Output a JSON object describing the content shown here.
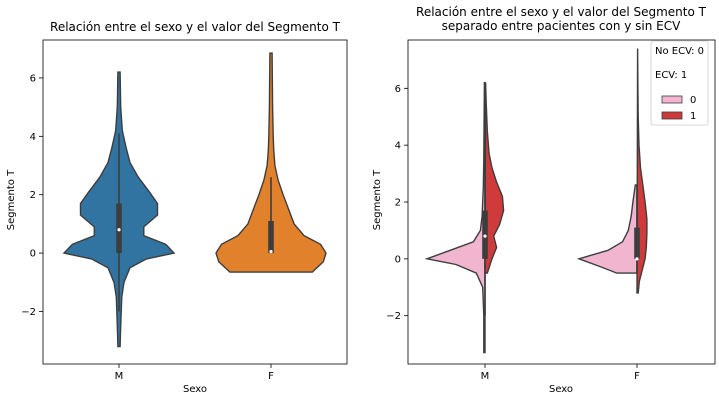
{
  "chart_data": [
    {
      "type": "violin",
      "title": "Relación entre el sexo y el valor del Segmento T",
      "xlabel": "Sexo",
      "ylabel": "Segmento T",
      "categories": [
        "M",
        "F"
      ],
      "ylim": [
        -3.8,
        7.3
      ],
      "yticks": [
        -2,
        0,
        2,
        4,
        6
      ],
      "colors": [
        "#3274a1",
        "#e1812c"
      ],
      "grid": false,
      "violins": [
        {
          "category": "M",
          "min": -3.2,
          "max": 6.2,
          "q1": 0.0,
          "median": 0.8,
          "q3": 1.7,
          "whisker_low": -2.0,
          "whisker_high": 4.1,
          "density": [
            [
              -3.2,
              0.02
            ],
            [
              -2.5,
              0.03
            ],
            [
              -1.5,
              0.05
            ],
            [
              -1.0,
              0.09
            ],
            [
              -0.5,
              0.2
            ],
            [
              -0.2,
              0.5
            ],
            [
              0.0,
              1.0
            ],
            [
              0.3,
              0.85
            ],
            [
              0.6,
              0.45
            ],
            [
              0.9,
              0.45
            ],
            [
              1.3,
              0.7
            ],
            [
              1.7,
              0.7
            ],
            [
              2.1,
              0.55
            ],
            [
              2.6,
              0.35
            ],
            [
              3.1,
              0.2
            ],
            [
              3.6,
              0.13
            ],
            [
              4.2,
              0.06
            ],
            [
              5.0,
              0.03
            ],
            [
              6.2,
              0.02
            ]
          ]
        },
        {
          "category": "F",
          "min": -0.65,
          "max": 6.85,
          "q1": 0.0,
          "median": 0.05,
          "q3": 1.1,
          "whisker_low": 0.0,
          "whisker_high": 2.6,
          "density": [
            [
              -0.65,
              0.75
            ],
            [
              -0.3,
              0.95
            ],
            [
              0.0,
              1.0
            ],
            [
              0.3,
              0.9
            ],
            [
              0.6,
              0.6
            ],
            [
              1.0,
              0.42
            ],
            [
              1.5,
              0.32
            ],
            [
              2.0,
              0.22
            ],
            [
              2.5,
              0.13
            ],
            [
              3.0,
              0.07
            ],
            [
              3.5,
              0.05
            ],
            [
              4.0,
              0.04
            ],
            [
              5.0,
              0.03
            ],
            [
              6.85,
              0.02
            ]
          ]
        }
      ]
    },
    {
      "type": "violin",
      "split": true,
      "title": "Relación entre el sexo y el valor del Segmento T\nseparado entre pacientes con y sin ECV",
      "xlabel": "Sexo",
      "ylabel": "Segmento T",
      "categories": [
        "M",
        "F"
      ],
      "ylim": [
        -3.7,
        7.7
      ],
      "yticks": [
        -2,
        0,
        2,
        4,
        6
      ],
      "grid": false,
      "legend": {
        "placement": "top-right",
        "notes": [
          "No ECV: 0",
          "ECV: 1"
        ],
        "entries": [
          {
            "label": "0",
            "color": "#f1b5cf"
          },
          {
            "label": "1",
            "color": "#cf3a3a"
          }
        ]
      },
      "violins": [
        {
          "category": "M",
          "hue": "0",
          "side": "left",
          "min": -3.3,
          "max": 6.2,
          "density": [
            [
              -3.3,
              0.02
            ],
            [
              -2.0,
              0.02
            ],
            [
              -1.0,
              0.04
            ],
            [
              -0.5,
              0.15
            ],
            [
              -0.2,
              0.5
            ],
            [
              0.0,
              1.0
            ],
            [
              0.3,
              0.6
            ],
            [
              0.6,
              0.2
            ],
            [
              1.0,
              0.08
            ],
            [
              1.5,
              0.05
            ],
            [
              2.0,
              0.04
            ],
            [
              2.5,
              0.03
            ],
            [
              3.5,
              0.02
            ],
            [
              6.2,
              0.01
            ]
          ]
        },
        {
          "category": "M",
          "hue": "1",
          "side": "right",
          "min": -0.5,
          "max": 6.2,
          "density": [
            [
              -0.5,
              0.04
            ],
            [
              0.0,
              0.12
            ],
            [
              0.4,
              0.2
            ],
            [
              0.8,
              0.15
            ],
            [
              1.2,
              0.25
            ],
            [
              1.7,
              0.32
            ],
            [
              2.2,
              0.3
            ],
            [
              2.7,
              0.2
            ],
            [
              3.2,
              0.12
            ],
            [
              3.7,
              0.07
            ],
            [
              4.5,
              0.04
            ],
            [
              5.5,
              0.02
            ],
            [
              6.2,
              0.01
            ]
          ]
        },
        {
          "category": "F",
          "hue": "0",
          "side": "left",
          "min": -0.5,
          "max": 2.6,
          "density": [
            [
              -0.5,
              0.35
            ],
            [
              -0.3,
              0.6
            ],
            [
              0.0,
              1.0
            ],
            [
              0.3,
              0.5
            ],
            [
              0.6,
              0.25
            ],
            [
              1.0,
              0.15
            ],
            [
              1.5,
              0.1
            ],
            [
              2.0,
              0.07
            ],
            [
              2.6,
              0.03
            ]
          ]
        },
        {
          "category": "F",
          "hue": "1",
          "side": "right",
          "min": -1.2,
          "max": 7.4,
          "density": [
            [
              -1.2,
              0.02
            ],
            [
              -0.8,
              0.04
            ],
            [
              -0.4,
              0.09
            ],
            [
              0.0,
              0.14
            ],
            [
              0.4,
              0.16
            ],
            [
              0.9,
              0.17
            ],
            [
              1.4,
              0.17
            ],
            [
              2.0,
              0.14
            ],
            [
              2.6,
              0.1
            ],
            [
              3.2,
              0.06
            ],
            [
              4.0,
              0.035
            ],
            [
              5.0,
              0.02
            ],
            [
              6.0,
              0.015
            ],
            [
              7.4,
              0.01
            ]
          ]
        }
      ],
      "inner_boxes": [
        {
          "category": "M",
          "q1": 0.0,
          "median": 0.8,
          "q3": 1.7,
          "whisker_low": -2.0,
          "whisker_high": 4.2
        },
        {
          "category": "F",
          "q1": 0.0,
          "median": 0.0,
          "q3": 1.1,
          "whisker_low": -0.5,
          "whisker_high": 2.6
        }
      ]
    }
  ]
}
